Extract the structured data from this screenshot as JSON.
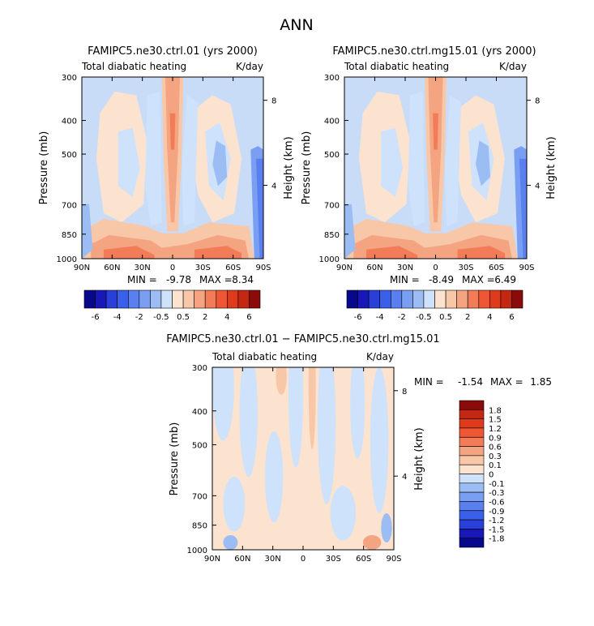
{
  "page": {
    "title": "ANN"
  },
  "colors": {
    "neg": [
      "#08088a",
      "#1818b8",
      "#2a3fd8",
      "#3a5fe8",
      "#5a7ff0",
      "#7a9ff2",
      "#9cbcf4",
      "#cfe2fb"
    ],
    "pos": [
      "#fbe3cf",
      "#f8c7a8",
      "#f5a482",
      "#f27c58",
      "#ee5634",
      "#e03a1c",
      "#c42812",
      "#8b0a0a"
    ]
  },
  "chart_data": [
    {
      "type": "heatmap",
      "title": "FAMIPC5.ne30.ctrl.01 (yrs 2000)",
      "left_label": "Total diabatic heating",
      "right_label": "K/day",
      "ylabel": "Pressure (mb)",
      "ylabel_right": "Height (km)",
      "x_ticks": [
        "90N",
        "60N",
        "30N",
        "0",
        "30S",
        "60S",
        "90S"
      ],
      "y_ticks": [
        "300",
        "400",
        "500",
        "700",
        "850",
        "1000"
      ],
      "height_ticks": [
        "8",
        "4"
      ],
      "min_label": "MIN =",
      "min_value": "-9.78",
      "max_label": "MAX =",
      "max_value": "8.34",
      "colorbar_labels": [
        "-6",
        "-4",
        "-2",
        "-0.5",
        "0.5",
        "2",
        "4",
        "6"
      ],
      "xlim": [
        -90,
        90
      ],
      "ylim": [
        1000,
        300
      ]
    },
    {
      "type": "heatmap",
      "title": "FAMIPC5.ne30.ctrl.mg15.01 (yrs 2000)",
      "left_label": "Total diabatic heating",
      "right_label": "K/day",
      "ylabel": "Pressure (mb)",
      "ylabel_right": "Height (km)",
      "x_ticks": [
        "90N",
        "60N",
        "30N",
        "0",
        "30S",
        "60S",
        "90S"
      ],
      "y_ticks": [
        "300",
        "400",
        "500",
        "700",
        "850",
        "1000"
      ],
      "height_ticks": [
        "8",
        "4"
      ],
      "min_label": "MIN =",
      "min_value": "-8.49",
      "max_label": "MAX =",
      "max_value": "6.49",
      "colorbar_labels": [
        "-6",
        "-4",
        "-2",
        "-0.5",
        "0.5",
        "2",
        "4",
        "6"
      ],
      "xlim": [
        -90,
        90
      ],
      "ylim": [
        1000,
        300
      ]
    },
    {
      "type": "heatmap",
      "title": "FAMIPC5.ne30.ctrl.01 − FAMIPC5.ne30.ctrl.mg15.01",
      "left_label": "Total diabatic heating",
      "right_label": "K/day",
      "ylabel": "Pressure (mb)",
      "ylabel_right": "Height (km)",
      "x_ticks": [
        "90N",
        "60N",
        "30N",
        "0",
        "30S",
        "60S",
        "90S"
      ],
      "y_ticks": [
        "300",
        "400",
        "500",
        "700",
        "850",
        "1000"
      ],
      "height_ticks": [
        "8",
        "4"
      ],
      "min_label": "MIN =",
      "min_value": "-1.54",
      "max_label": "MAX =",
      "max_value": "1.85",
      "colorbar_labels": [
        "1.8",
        "1.5",
        "1.2",
        "0.9",
        "0.6",
        "0.3",
        "0.1",
        "0",
        "-0.1",
        "-0.3",
        "-0.6",
        "-0.9",
        "-1.2",
        "-1.5",
        "-1.8"
      ],
      "xlim": [
        -90,
        90
      ],
      "ylim": [
        1000,
        300
      ]
    }
  ]
}
